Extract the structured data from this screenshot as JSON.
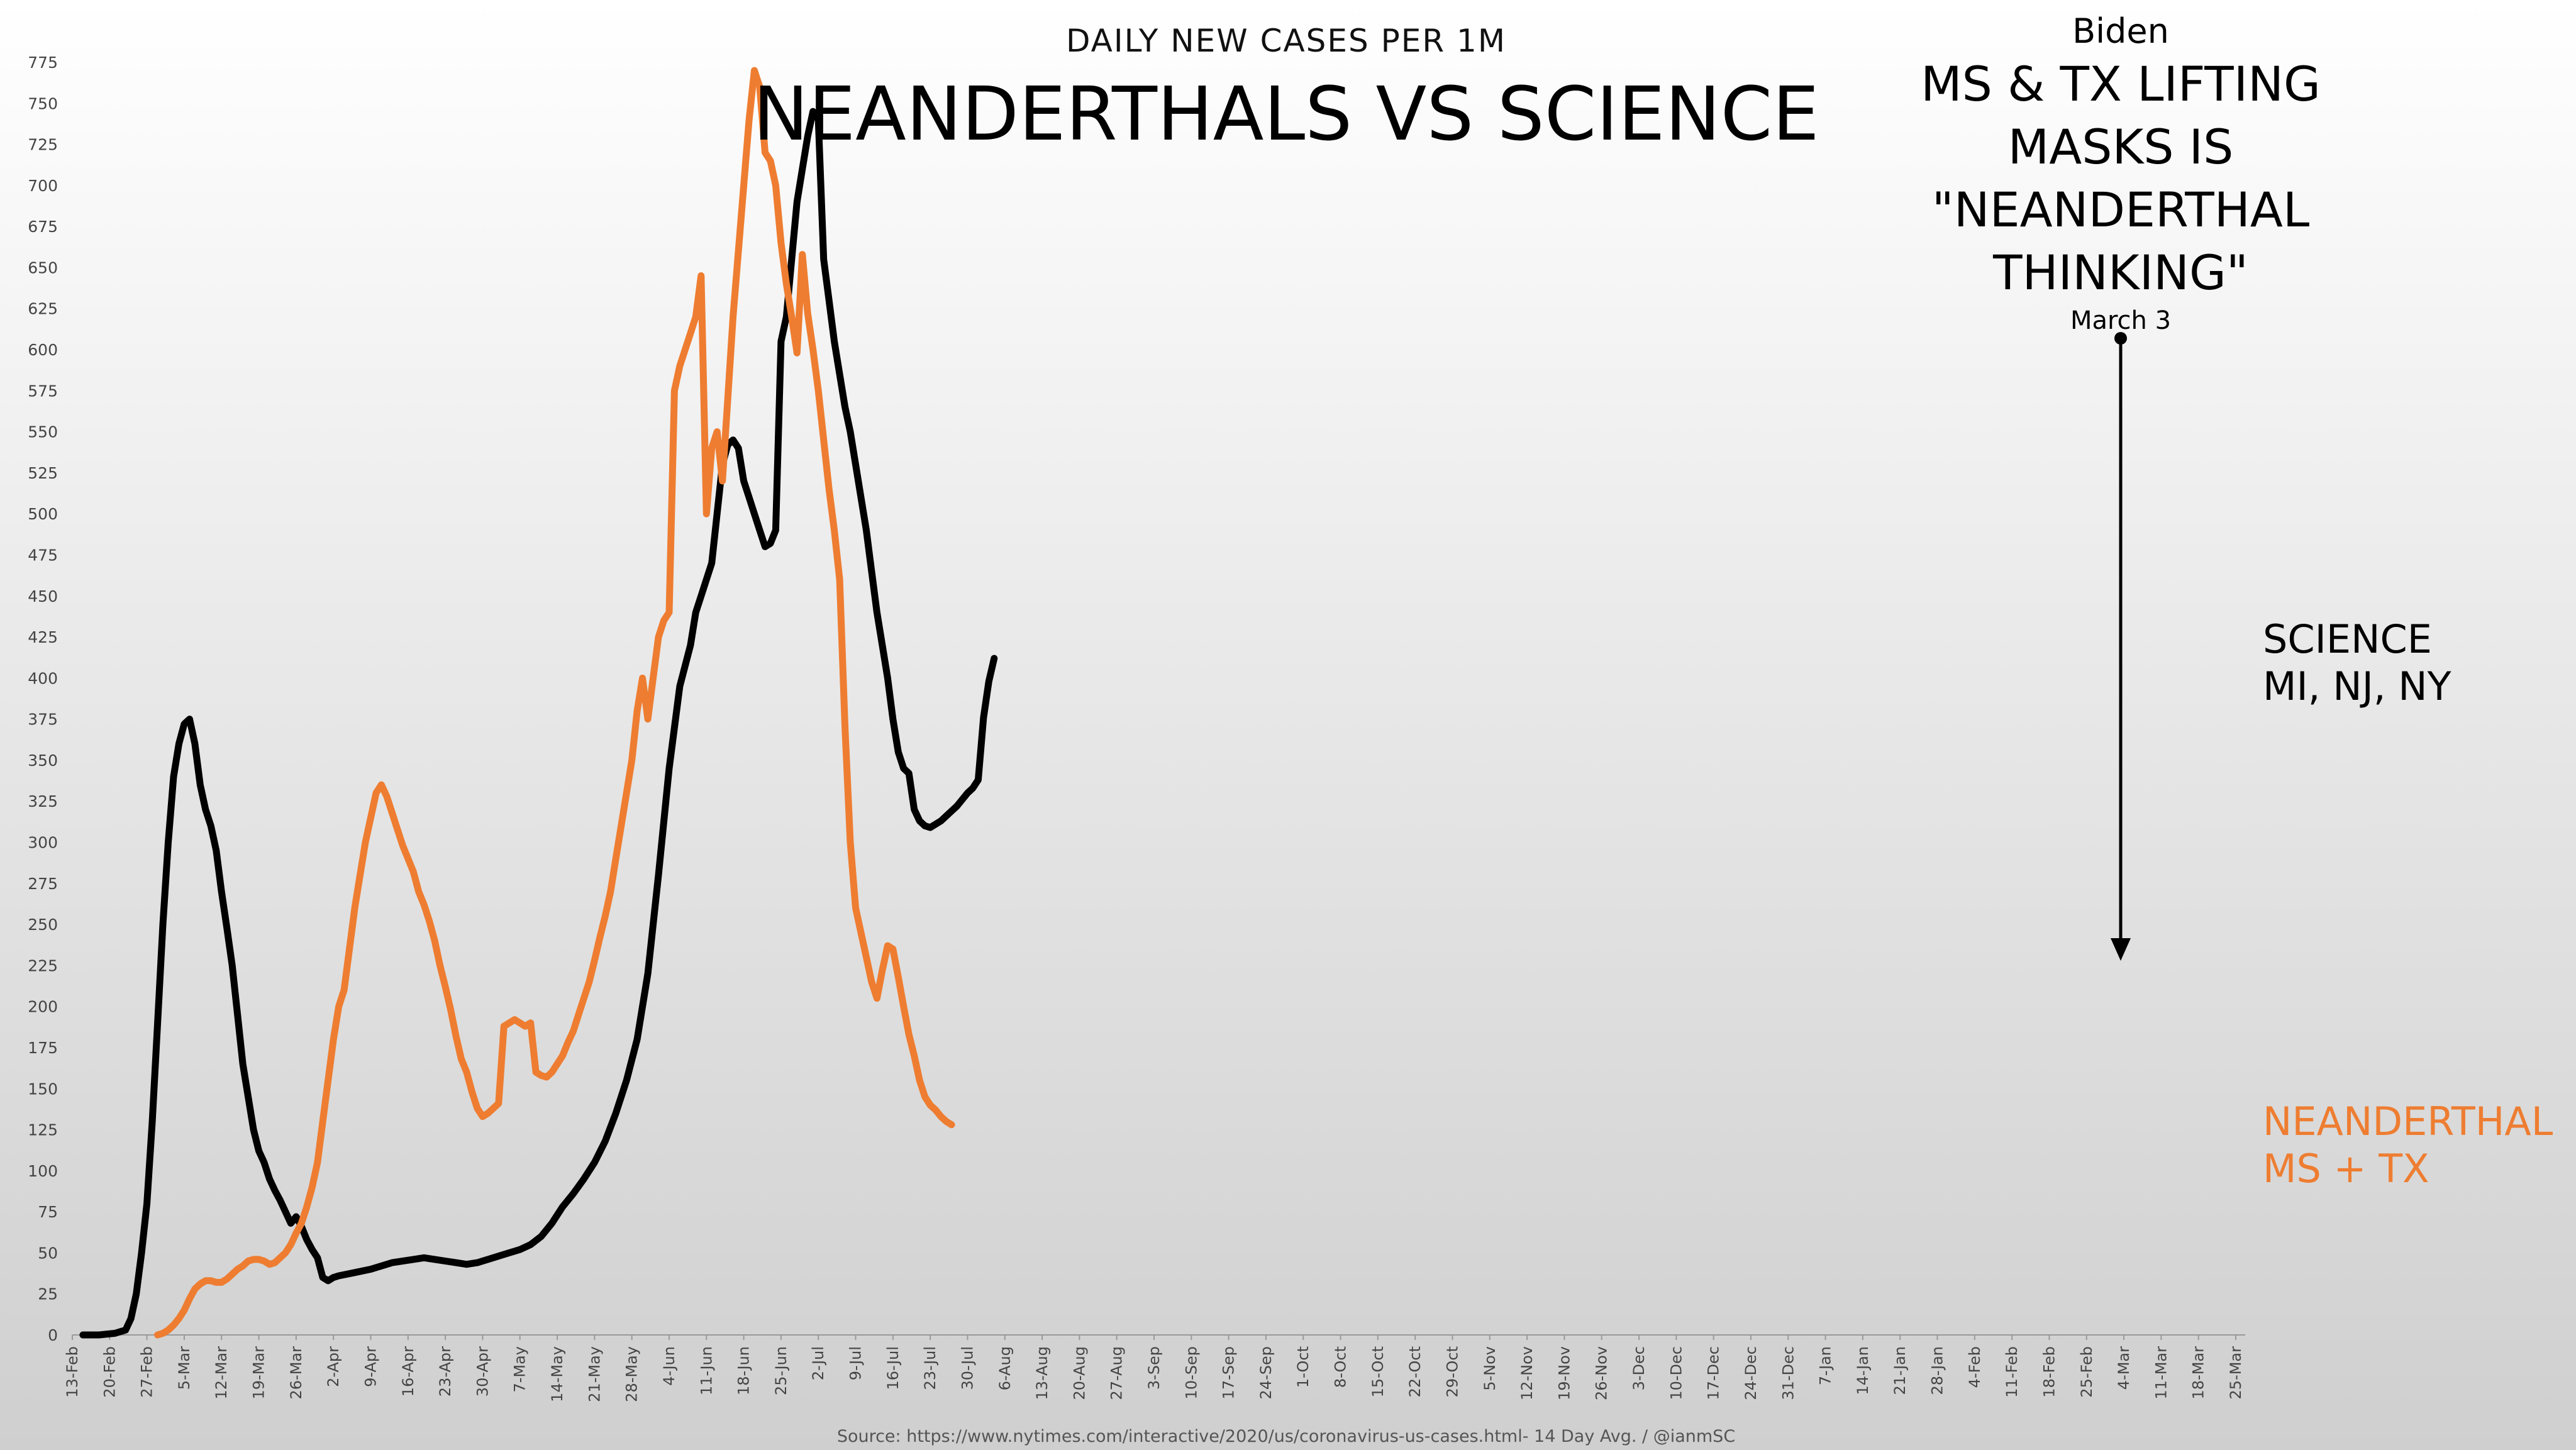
{
  "chart_data": {
    "type": "line",
    "subtitle": "DAILY NEW CASES PER 1M",
    "title": "NEANDERTHALS VS SCIENCE",
    "source": "Source: https://www.nytimes.com/interactive/2020/us/coronavirus-us-cases.html- 14 Day Avg. / @ianmSC",
    "ylim": [
      0,
      775
    ],
    "y_ticks": [
      0,
      25,
      50,
      75,
      100,
      125,
      150,
      175,
      200,
      225,
      250,
      275,
      300,
      325,
      350,
      375,
      400,
      425,
      450,
      475,
      500,
      525,
      550,
      575,
      600,
      625,
      650,
      675,
      700,
      725,
      750,
      775
    ],
    "x_ticks": [
      "13-Feb",
      "20-Feb",
      "27-Feb",
      "5-Mar",
      "12-Mar",
      "19-Mar",
      "26-Mar",
      "2-Apr",
      "9-Apr",
      "16-Apr",
      "23-Apr",
      "30-Apr",
      "7-May",
      "14-May",
      "21-May",
      "28-May",
      "4-Jun",
      "11-Jun",
      "18-Jun",
      "25-Jun",
      "2-Jul",
      "9-Jul",
      "16-Jul",
      "23-Jul",
      "30-Jul",
      "6-Aug",
      "13-Aug",
      "20-Aug",
      "27-Aug",
      "3-Sep",
      "10-Sep",
      "17-Sep",
      "24-Sep",
      "1-Oct",
      "8-Oct",
      "15-Oct",
      "22-Oct",
      "29-Oct",
      "5-Nov",
      "12-Nov",
      "19-Nov",
      "26-Nov",
      "3-Dec",
      "10-Dec",
      "17-Dec",
      "24-Dec",
      "31-Dec",
      "7-Jan",
      "14-Jan",
      "21-Jan",
      "28-Jan",
      "4-Feb",
      "11-Feb",
      "18-Feb",
      "25-Feb",
      "4-Mar",
      "11-Mar",
      "18-Mar",
      "25-Mar"
    ],
    "series": [
      {
        "name": "SCIENCE",
        "name_line2": "MI, NJ, NY",
        "color": "#000000",
        "points": [
          [
            2,
            0
          ],
          [
            5,
            0
          ],
          [
            8,
            1
          ],
          [
            10,
            3
          ],
          [
            11,
            10
          ],
          [
            12,
            25
          ],
          [
            13,
            50
          ],
          [
            14,
            80
          ],
          [
            15,
            130
          ],
          [
            16,
            190
          ],
          [
            17,
            250
          ],
          [
            18,
            300
          ],
          [
            19,
            340
          ],
          [
            20,
            360
          ],
          [
            21,
            372
          ],
          [
            22,
            375
          ],
          [
            23,
            360
          ],
          [
            24,
            335
          ],
          [
            25,
            320
          ],
          [
            26,
            310
          ],
          [
            27,
            295
          ],
          [
            28,
            270
          ],
          [
            29,
            248
          ],
          [
            30,
            225
          ],
          [
            31,
            195
          ],
          [
            32,
            165
          ],
          [
            33,
            145
          ],
          [
            34,
            125
          ],
          [
            35,
            112
          ],
          [
            36,
            105
          ],
          [
            37,
            95
          ],
          [
            38,
            88
          ],
          [
            39,
            82
          ],
          [
            40,
            75
          ],
          [
            41,
            68
          ],
          [
            42,
            72
          ],
          [
            43,
            66
          ],
          [
            44,
            58
          ],
          [
            45,
            52
          ],
          [
            46,
            47
          ],
          [
            47,
            35
          ],
          [
            48,
            33
          ],
          [
            49,
            35
          ],
          [
            50,
            36
          ],
          [
            53,
            38
          ],
          [
            56,
            40
          ],
          [
            60,
            44
          ],
          [
            64,
            46
          ],
          [
            66,
            47
          ],
          [
            68,
            46
          ],
          [
            70,
            45
          ],
          [
            72,
            44
          ],
          [
            74,
            43
          ],
          [
            76,
            44
          ],
          [
            78,
            46
          ],
          [
            80,
            48
          ],
          [
            82,
            50
          ],
          [
            84,
            52
          ],
          [
            86,
            55
          ],
          [
            88,
            60
          ],
          [
            90,
            68
          ],
          [
            92,
            78
          ],
          [
            94,
            86
          ],
          [
            96,
            95
          ],
          [
            98,
            105
          ],
          [
            100,
            118
          ],
          [
            102,
            135
          ],
          [
            104,
            155
          ],
          [
            106,
            180
          ],
          [
            108,
            220
          ],
          [
            110,
            280
          ],
          [
            112,
            345
          ],
          [
            114,
            395
          ],
          [
            116,
            420
          ],
          [
            117,
            440
          ],
          [
            118,
            450
          ],
          [
            120,
            470
          ],
          [
            121,
            500
          ],
          [
            122,
            530
          ],
          [
            123,
            542
          ],
          [
            124,
            545
          ],
          [
            125,
            540
          ],
          [
            126,
            520
          ],
          [
            127,
            510
          ],
          [
            128,
            500
          ],
          [
            129,
            490
          ],
          [
            130,
            480
          ],
          [
            131,
            482
          ],
          [
            132,
            490
          ],
          [
            133,
            605
          ],
          [
            134,
            620
          ],
          [
            135,
            655
          ],
          [
            136,
            690
          ],
          [
            137,
            710
          ],
          [
            138,
            730
          ],
          [
            139,
            745
          ],
          [
            140,
            740
          ],
          [
            141,
            655
          ],
          [
            142,
            630
          ],
          [
            143,
            605
          ],
          [
            144,
            585
          ],
          [
            145,
            565
          ],
          [
            146,
            550
          ],
          [
            147,
            530
          ],
          [
            148,
            510
          ],
          [
            149,
            490
          ],
          [
            150,
            465
          ],
          [
            151,
            440
          ],
          [
            152,
            420
          ],
          [
            153,
            400
          ],
          [
            154,
            375
          ],
          [
            155,
            355
          ],
          [
            156,
            345
          ],
          [
            157,
            342
          ],
          [
            158,
            320
          ],
          [
            159,
            313
          ],
          [
            160,
            310
          ],
          [
            161,
            309
          ],
          [
            162,
            311
          ],
          [
            163,
            313
          ],
          [
            164,
            316
          ],
          [
            165,
            319
          ],
          [
            166,
            322
          ],
          [
            167,
            326
          ],
          [
            168,
            330
          ],
          [
            169,
            333
          ],
          [
            170,
            338
          ],
          [
            171,
            376
          ],
          [
            172,
            398
          ],
          [
            173,
            412
          ]
        ]
      },
      {
        "name": "NEANDERTHAL",
        "name_line2": "MS + TX",
        "color": "#ee7d31",
        "points": [
          [
            16,
            0
          ],
          [
            17,
            1
          ],
          [
            18,
            3
          ],
          [
            19,
            6
          ],
          [
            20,
            10
          ],
          [
            21,
            15
          ],
          [
            22,
            22
          ],
          [
            23,
            28
          ],
          [
            24,
            31
          ],
          [
            25,
            33
          ],
          [
            26,
            33
          ],
          [
            27,
            32
          ],
          [
            28,
            32
          ],
          [
            29,
            34
          ],
          [
            30,
            37
          ],
          [
            31,
            40
          ],
          [
            32,
            42
          ],
          [
            33,
            45
          ],
          [
            34,
            46
          ],
          [
            35,
            46
          ],
          [
            36,
            45
          ],
          [
            37,
            43
          ],
          [
            38,
            44
          ],
          [
            39,
            47
          ],
          [
            40,
            50
          ],
          [
            41,
            55
          ],
          [
            42,
            62
          ],
          [
            43,
            68
          ],
          [
            44,
            78
          ],
          [
            45,
            90
          ],
          [
            46,
            105
          ],
          [
            47,
            130
          ],
          [
            48,
            155
          ],
          [
            49,
            180
          ],
          [
            50,
            200
          ],
          [
            51,
            210
          ],
          [
            52,
            235
          ],
          [
            53,
            260
          ],
          [
            54,
            280
          ],
          [
            55,
            300
          ],
          [
            56,
            315
          ],
          [
            57,
            330
          ],
          [
            58,
            335
          ],
          [
            59,
            328
          ],
          [
            60,
            318
          ],
          [
            61,
            308
          ],
          [
            62,
            298
          ],
          [
            63,
            290
          ],
          [
            64,
            282
          ],
          [
            65,
            270
          ],
          [
            66,
            262
          ],
          [
            67,
            252
          ],
          [
            68,
            240
          ],
          [
            69,
            225
          ],
          [
            70,
            212
          ],
          [
            71,
            198
          ],
          [
            72,
            182
          ],
          [
            73,
            168
          ],
          [
            74,
            160
          ],
          [
            75,
            148
          ],
          [
            76,
            138
          ],
          [
            77,
            133
          ],
          [
            78,
            135
          ],
          [
            79,
            138
          ],
          [
            80,
            141
          ],
          [
            81,
            188
          ],
          [
            82,
            190
          ],
          [
            83,
            192
          ],
          [
            84,
            190
          ],
          [
            85,
            188
          ],
          [
            86,
            190
          ],
          [
            87,
            160
          ],
          [
            88,
            158
          ],
          [
            89,
            157
          ],
          [
            90,
            160
          ],
          [
            91,
            165
          ],
          [
            92,
            170
          ],
          [
            93,
            178
          ],
          [
            94,
            185
          ],
          [
            95,
            195
          ],
          [
            96,
            205
          ],
          [
            97,
            215
          ],
          [
            98,
            228
          ],
          [
            99,
            242
          ],
          [
            100,
            255
          ],
          [
            101,
            270
          ],
          [
            102,
            290
          ],
          [
            103,
            310
          ],
          [
            104,
            330
          ],
          [
            105,
            350
          ],
          [
            106,
            380
          ],
          [
            107,
            400
          ],
          [
            108,
            375
          ],
          [
            109,
            400
          ],
          [
            110,
            425
          ],
          [
            111,
            435
          ],
          [
            112,
            440
          ],
          [
            113,
            575
          ],
          [
            114,
            590
          ],
          [
            115,
            600
          ],
          [
            116,
            610
          ],
          [
            117,
            620
          ],
          [
            118,
            645
          ],
          [
            119,
            500
          ],
          [
            120,
            540
          ],
          [
            121,
            550
          ],
          [
            122,
            520
          ],
          [
            123,
            570
          ],
          [
            124,
            620
          ],
          [
            125,
            660
          ],
          [
            126,
            700
          ],
          [
            127,
            740
          ],
          [
            128,
            770
          ],
          [
            129,
            760
          ],
          [
            130,
            720
          ],
          [
            131,
            715
          ],
          [
            132,
            700
          ],
          [
            133,
            665
          ],
          [
            134,
            640
          ],
          [
            135,
            620
          ],
          [
            136,
            598
          ],
          [
            137,
            658
          ],
          [
            138,
            622
          ],
          [
            139,
            600
          ],
          [
            140,
            575
          ],
          [
            141,
            545
          ],
          [
            142,
            515
          ],
          [
            143,
            490
          ],
          [
            144,
            460
          ],
          [
            145,
            370
          ],
          [
            146,
            300
          ],
          [
            147,
            260
          ],
          [
            148,
            245
          ],
          [
            149,
            230
          ],
          [
            150,
            215
          ],
          [
            151,
            205
          ],
          [
            152,
            222
          ],
          [
            153,
            237
          ],
          [
            154,
            235
          ],
          [
            155,
            218
          ],
          [
            156,
            200
          ],
          [
            157,
            183
          ],
          [
            158,
            170
          ],
          [
            159,
            155
          ],
          [
            160,
            145
          ],
          [
            161,
            140
          ],
          [
            162,
            137
          ],
          [
            163,
            133
          ],
          [
            164,
            130
          ],
          [
            165,
            128
          ]
        ]
      }
    ],
    "annotations": {
      "biden": "Biden",
      "quote_lines": [
        "MS & TX LIFTING",
        "MASKS IS",
        "\"NEANDERTHAL",
        "THINKING\""
      ],
      "arrow_date": "March 3"
    }
  }
}
